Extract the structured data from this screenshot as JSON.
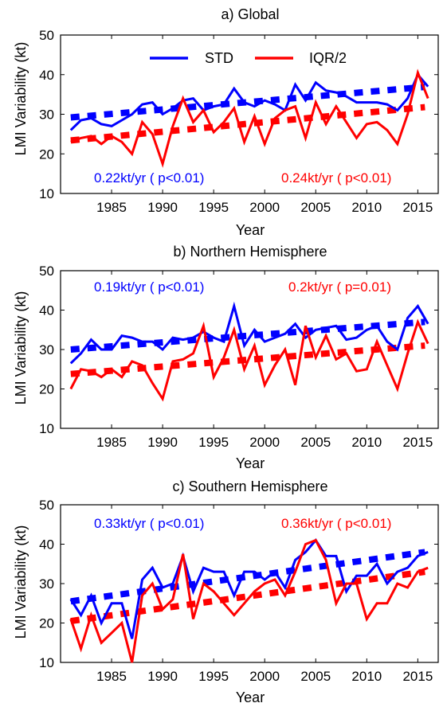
{
  "colors": {
    "std": "#0000ff",
    "iqr": "#ff0000",
    "axis": "#000000"
  },
  "legend": {
    "std_label": "STD",
    "iqr_label": "IQR/2"
  },
  "chart_data": [
    {
      "type": "line",
      "title": "a) Global",
      "xlabel": "Year",
      "ylabel": "LMI Variability (kt)",
      "xlim": [
        1980,
        2017
      ],
      "ylim": [
        10,
        50
      ],
      "xticks": [
        1985,
        1990,
        1995,
        2000,
        2005,
        2010,
        2015
      ],
      "yticks": [
        10,
        20,
        30,
        40,
        50
      ],
      "x": [
        1981,
        1982,
        1983,
        1984,
        1985,
        1986,
        1987,
        1988,
        1989,
        1990,
        1991,
        1992,
        1993,
        1994,
        1995,
        1996,
        1997,
        1998,
        1999,
        2000,
        2001,
        2002,
        2003,
        2004,
        2005,
        2006,
        2007,
        2008,
        2009,
        2010,
        2011,
        2012,
        2013,
        2014,
        2015,
        2016
      ],
      "series": [
        {
          "name": "STD",
          "color": "#0000ff",
          "values": [
            26,
            28.5,
            29,
            27.5,
            27,
            28.5,
            30,
            32.5,
            33,
            30,
            31.5,
            33.5,
            34,
            31,
            32,
            32.5,
            36.5,
            33,
            32,
            33.5,
            32.5,
            31,
            37.5,
            33.5,
            38,
            36,
            35.5,
            34.5,
            33,
            33,
            33,
            32.5,
            31,
            34,
            40,
            37
          ],
          "trend": [
            29.2,
            36.9
          ]
        },
        {
          "name": "IQR/2",
          "color": "#ff0000",
          "values": [
            23,
            24,
            24.5,
            22.5,
            24.5,
            23,
            20,
            28,
            25,
            17.5,
            27,
            34,
            28,
            31,
            25.5,
            28,
            31.5,
            23,
            29.5,
            22.5,
            29,
            31,
            32,
            24,
            33,
            27.5,
            32,
            28,
            24,
            27.5,
            28,
            26,
            22.5,
            30,
            40.5,
            34
          ],
          "trend": [
            23.4,
            31.8
          ]
        }
      ],
      "annotations": [
        {
          "text": "0.22kt/yr ( p<0.01)",
          "color": "#0000ff"
        },
        {
          "text": "0.24kt/yr ( p<0.01)",
          "color": "#ff0000"
        }
      ],
      "legend": true,
      "legend_position": "top"
    },
    {
      "type": "line",
      "title": "b) Northern Hemisphere",
      "xlabel": "Year",
      "ylabel": "LMI Variability (kt)",
      "xlim": [
        1980,
        2017
      ],
      "ylim": [
        10,
        50
      ],
      "xticks": [
        1985,
        1990,
        1995,
        2000,
        2005,
        2010,
        2015
      ],
      "yticks": [
        10,
        20,
        30,
        40,
        50
      ],
      "x": [
        1981,
        1982,
        1983,
        1984,
        1985,
        1986,
        1987,
        1988,
        1989,
        1990,
        1991,
        1992,
        1993,
        1994,
        1995,
        1996,
        1997,
        1998,
        1999,
        2000,
        2001,
        2002,
        2003,
        2004,
        2005,
        2006,
        2007,
        2008,
        2009,
        2010,
        2011,
        2012,
        2013,
        2014,
        2015,
        2016
      ],
      "series": [
        {
          "name": "STD",
          "color": "#0000ff",
          "values": [
            26.5,
            29,
            32.5,
            30,
            30,
            33.5,
            33,
            32,
            32,
            30,
            33,
            32.5,
            33,
            34.5,
            33,
            32,
            41,
            31,
            35,
            32,
            33,
            34,
            36.5,
            33,
            35,
            35.5,
            36,
            32.5,
            33,
            35,
            36,
            32,
            30,
            38,
            41,
            36.5
          ],
          "trend": [
            30,
            37
          ]
        },
        {
          "name": "IQR/2",
          "color": "#ff0000",
          "values": [
            20,
            25,
            24.5,
            23,
            25,
            23,
            27,
            26,
            21.5,
            17.5,
            27,
            27.5,
            29,
            36,
            23,
            28,
            35,
            25,
            31,
            21,
            26,
            30,
            21,
            36,
            28,
            33.5,
            27.5,
            29,
            24.5,
            25,
            32,
            26,
            20,
            29,
            37,
            31.5
          ],
          "trend": [
            23.8,
            31
          ]
        }
      ],
      "annotations": [
        {
          "text": "0.19kt/yr ( p<0.01)",
          "color": "#0000ff"
        },
        {
          "text": "0.2kt/yr ( p=0.01)",
          "color": "#ff0000"
        }
      ],
      "legend": false
    },
    {
      "type": "line",
      "title": "c) Southern Hemisphere",
      "xlabel": "Year",
      "ylabel": "LMI Variability (kt)",
      "xlim": [
        1980,
        2017
      ],
      "ylim": [
        10,
        50
      ],
      "xticks": [
        1985,
        1990,
        1995,
        2000,
        2005,
        2010,
        2015
      ],
      "yticks": [
        10,
        20,
        30,
        40,
        50
      ],
      "x": [
        1981,
        1982,
        1983,
        1984,
        1985,
        1986,
        1987,
        1988,
        1989,
        1990,
        1991,
        1992,
        1993,
        1994,
        1995,
        1996,
        1997,
        1998,
        1999,
        2000,
        2001,
        2002,
        2003,
        2004,
        2005,
        2006,
        2007,
        2008,
        2009,
        2010,
        2011,
        2012,
        2013,
        2014,
        2015,
        2016
      ],
      "series": [
        {
          "name": "STD",
          "color": "#0000ff",
          "values": [
            26,
            22,
            27,
            20,
            25,
            25,
            16,
            31,
            34,
            29,
            30,
            37,
            28,
            34,
            33,
            33,
            27,
            33,
            33,
            31,
            33,
            29,
            36,
            38,
            41,
            37,
            37,
            28,
            32,
            32,
            35,
            30,
            33,
            34,
            37,
            38
          ],
          "trend": [
            25.5,
            38
          ]
        },
        {
          "name": "IQR/2",
          "color": "#ff0000",
          "values": [
            21,
            13.5,
            22,
            15,
            17.5,
            20,
            10,
            27,
            30,
            23.5,
            26,
            37.5,
            21,
            30,
            28,
            25,
            22,
            25,
            28,
            30,
            31,
            27,
            33,
            40,
            41,
            36,
            25,
            30,
            30,
            21,
            25,
            25,
            30,
            29,
            33,
            34
          ],
          "trend": [
            20.5,
            33
          ]
        }
      ],
      "annotations": [
        {
          "text": "0.33kt/yr ( p<0.01)",
          "color": "#0000ff"
        },
        {
          "text": "0.36kt/yr ( p<0.01)",
          "color": "#ff0000"
        }
      ],
      "legend": false
    }
  ]
}
